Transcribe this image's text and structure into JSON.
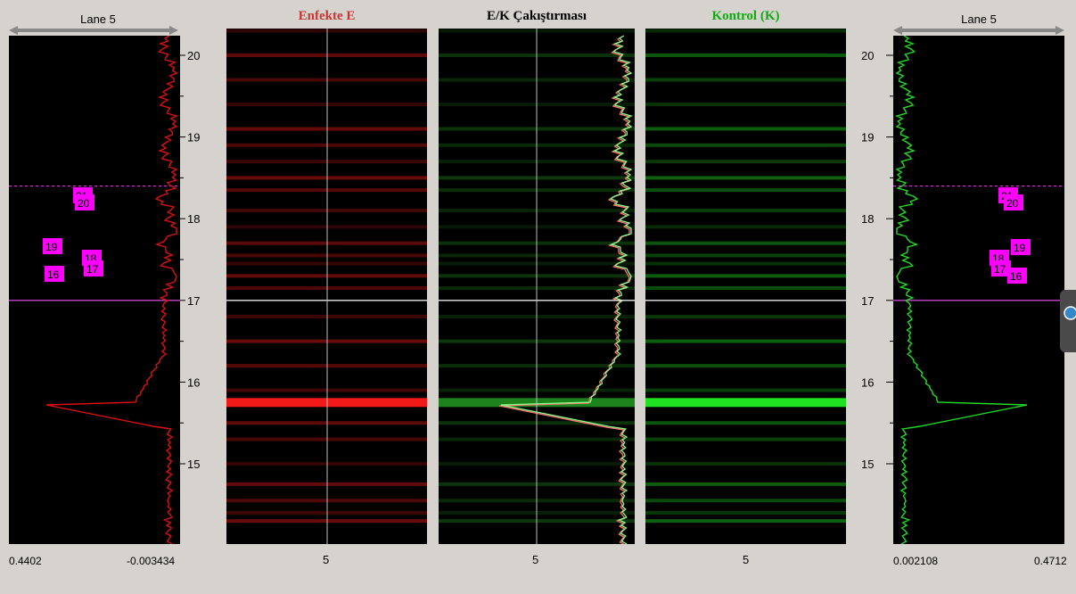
{
  "left_profile": {
    "lane_title": "Lane 5",
    "min_label": "0.4402",
    "max_label": "-0.003434",
    "color": "#e01010",
    "peak_labels": [
      "21",
      "20",
      "19",
      "18",
      "17",
      "16"
    ]
  },
  "right_profile": {
    "lane_title": "Lane 5",
    "min_label": "0.002108",
    "max_label": "0.4712",
    "color": "#22dd22",
    "peak_labels": [
      "21",
      "20",
      "19",
      "18",
      "17",
      "16"
    ]
  },
  "y_axis": {
    "ticks": [
      "20",
      "19",
      "18",
      "17",
      "16",
      "15"
    ]
  },
  "headers": {
    "infected": "Enfekte  E",
    "overlay": "E/K Çakıştırması",
    "control": "Kontrol (K)"
  },
  "lanes": {
    "infected_label": "5",
    "overlay_label": "5",
    "control_label": "5"
  },
  "colors": {
    "infected": "#ff1a1a",
    "control": "#22ee22",
    "marker": "#ff00ff",
    "cursor_solid": "#cc44cc",
    "cursor_dotted": "#dd33dd"
  },
  "cursor": {
    "solid_value": 17.0,
    "dotted_value": 18.4
  }
}
